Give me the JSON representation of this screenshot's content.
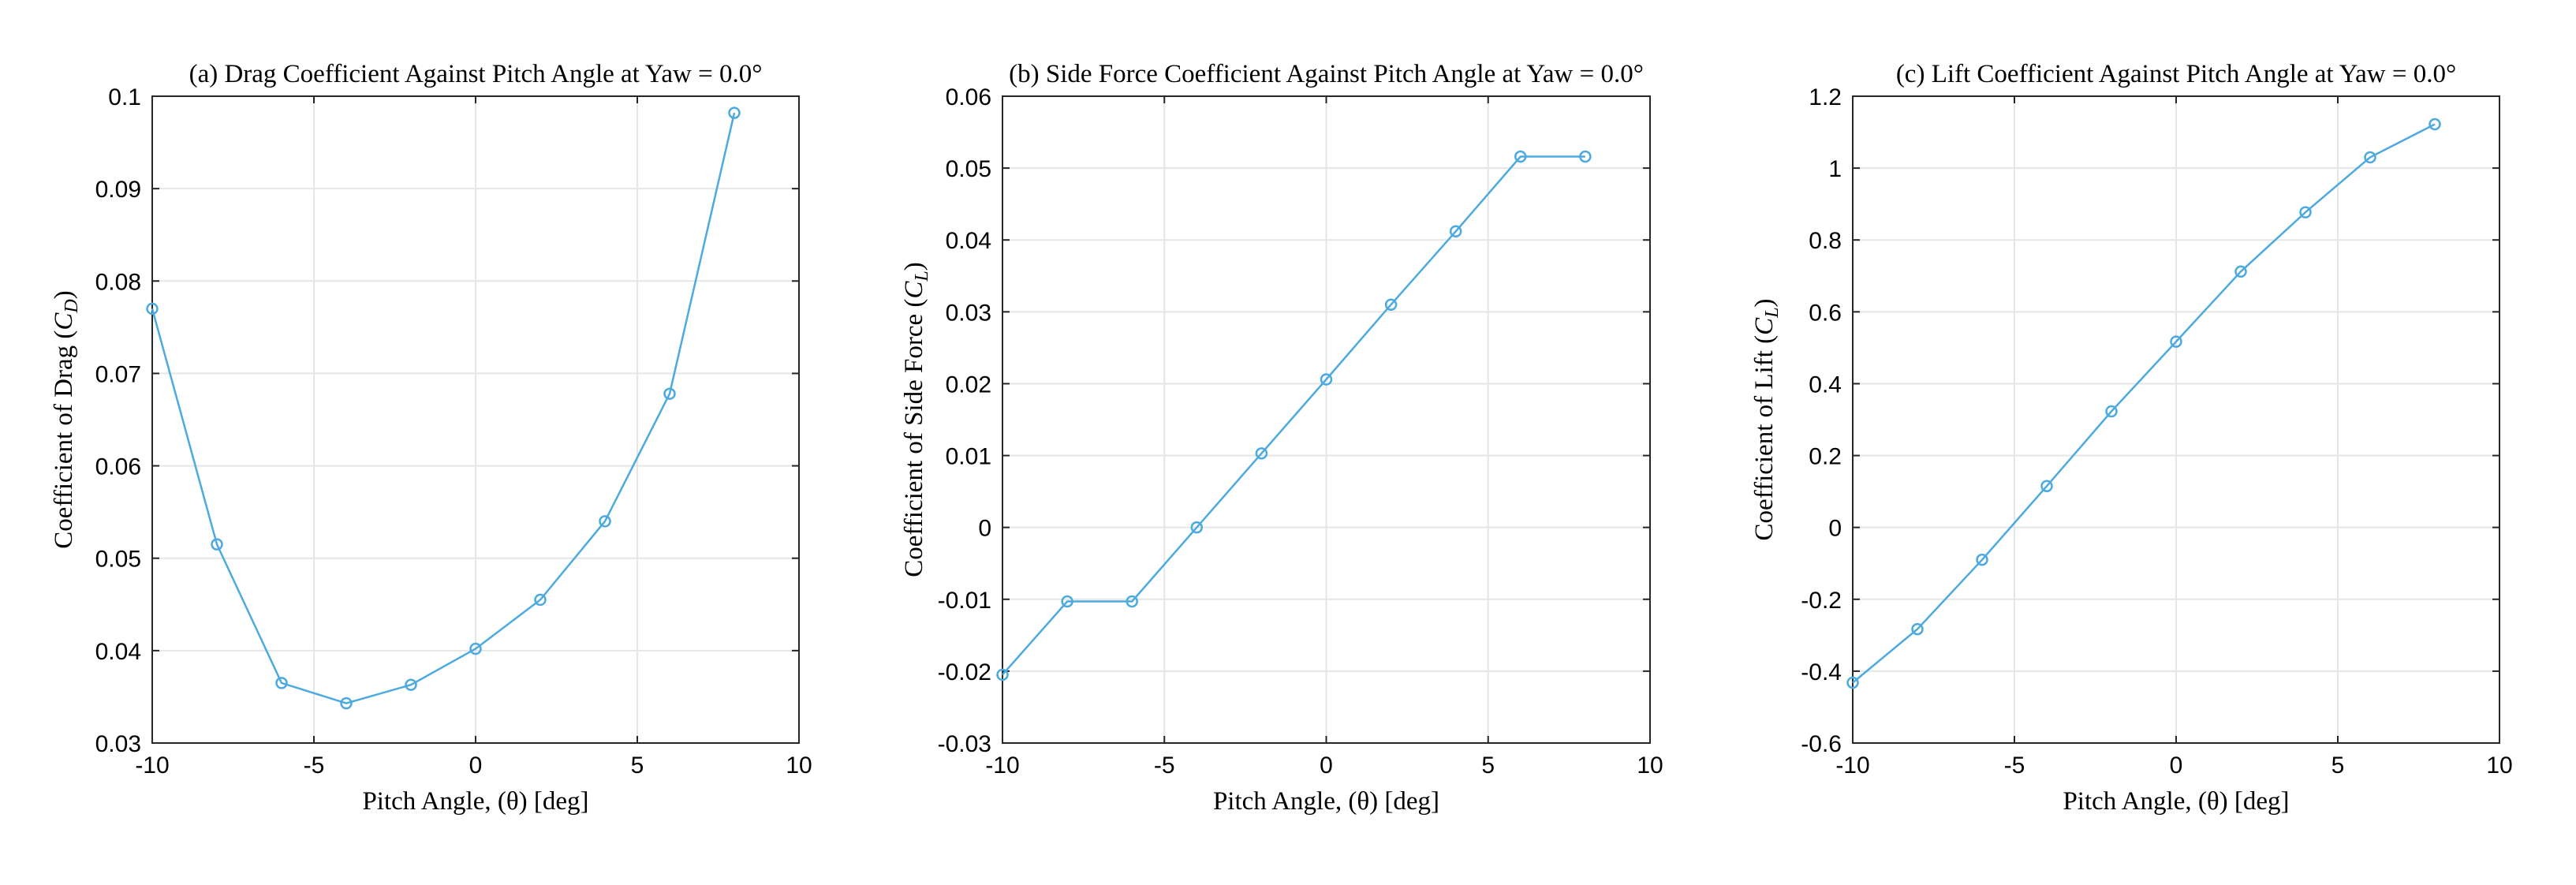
{
  "colors": {
    "series": "#4DAADF",
    "grid": "#E6E6E6",
    "axes": "#262626",
    "background": "#FFFFFF"
  },
  "chart_data": [
    {
      "type": "line",
      "title": "(a) Drag Coefficient Against Pitch Angle at Yaw = 0.0°",
      "xlabel": "Pitch Angle, (θ) [deg]",
      "ylabel_prefix": "Coefficient of Drag (",
      "ylabel_symbol": "C",
      "ylabel_sub": "D",
      "ylabel_suffix": ")",
      "xlim": [
        -10,
        10
      ],
      "ylim": [
        0.03,
        0.1
      ],
      "grid": true,
      "xticks": [
        -10,
        -5,
        0,
        5,
        10
      ],
      "xtick_labels": [
        "-10",
        "-5",
        "0",
        "5",
        "10"
      ],
      "yticks": [
        0.03,
        0.04,
        0.05,
        0.06,
        0.07,
        0.08,
        0.09,
        0.1
      ],
      "ytick_labels": [
        "0.03",
        "0.04",
        "0.05",
        "0.06",
        "0.07",
        "0.08",
        "0.09",
        "0.1"
      ],
      "marker": "circle",
      "series": [
        {
          "x": [
            -10,
            -8,
            -6,
            -4,
            -2,
            0,
            2,
            4,
            6,
            8
          ],
          "y": [
            0.077,
            0.0515,
            0.0365,
            0.0343,
            0.0363,
            0.0402,
            0.0455,
            0.054,
            0.0678,
            0.0982
          ]
        }
      ]
    },
    {
      "type": "line",
      "title": "(b) Side Force Coefficient Against Pitch Angle at Yaw = 0.0°",
      "xlabel": "Pitch Angle, (θ) [deg]",
      "ylabel_prefix": "Coefficient of Side Force (",
      "ylabel_symbol": "C",
      "ylabel_sub": "L",
      "ylabel_suffix": ")",
      "xlim": [
        -10,
        10
      ],
      "ylim": [
        -0.03,
        0.06
      ],
      "grid": true,
      "xticks": [
        -10,
        -5,
        0,
        5,
        10
      ],
      "xtick_labels": [
        "-10",
        "-5",
        "0",
        "5",
        "10"
      ],
      "yticks": [
        -0.03,
        -0.02,
        -0.01,
        0,
        0.01,
        0.02,
        0.03,
        0.04,
        0.05,
        0.06
      ],
      "ytick_labels": [
        "-0.03",
        "-0.02",
        "-0.01",
        "0",
        "0.01",
        "0.02",
        "0.03",
        "0.04",
        "0.05",
        "0.06"
      ],
      "marker": "circle",
      "series": [
        {
          "x": [
            -10,
            -8,
            -6,
            -4,
            -2,
            0,
            2,
            4,
            6,
            8
          ],
          "y": [
            -0.0205,
            -0.0103,
            -0.0103,
            0.0,
            0.0103,
            0.0206,
            0.031,
            0.0412,
            0.0516,
            0.0516
          ]
        }
      ]
    },
    {
      "type": "line",
      "title": "(c) Lift Coefficient Against Pitch Angle at Yaw = 0.0°",
      "xlabel": "Pitch Angle, (θ) [deg]",
      "ylabel_prefix": "Coefficient of Lift (",
      "ylabel_symbol": "C",
      "ylabel_sub": "L",
      "ylabel_suffix": ")",
      "xlim": [
        -10,
        10
      ],
      "ylim": [
        -0.6,
        1.2
      ],
      "grid": true,
      "xticks": [
        -10,
        -5,
        0,
        5,
        10
      ],
      "xtick_labels": [
        "-10",
        "-5",
        "0",
        "5",
        "10"
      ],
      "yticks": [
        -0.6,
        -0.4,
        -0.2,
        0,
        0.2,
        0.4,
        0.6,
        0.8,
        1.0,
        1.2
      ],
      "ytick_labels": [
        "-0.6",
        "-0.4",
        "-0.2",
        "0",
        "0.2",
        "0.4",
        "0.6",
        "0.8",
        "1",
        "1.2"
      ],
      "marker": "circle",
      "series": [
        {
          "x": [
            -10,
            -8,
            -6,
            -4,
            -2,
            0,
            2,
            4,
            6,
            8
          ],
          "y": [
            -0.432,
            -0.283,
            -0.09,
            0.115,
            0.323,
            0.517,
            0.712,
            0.877,
            1.03,
            1.122
          ]
        }
      ]
    }
  ]
}
